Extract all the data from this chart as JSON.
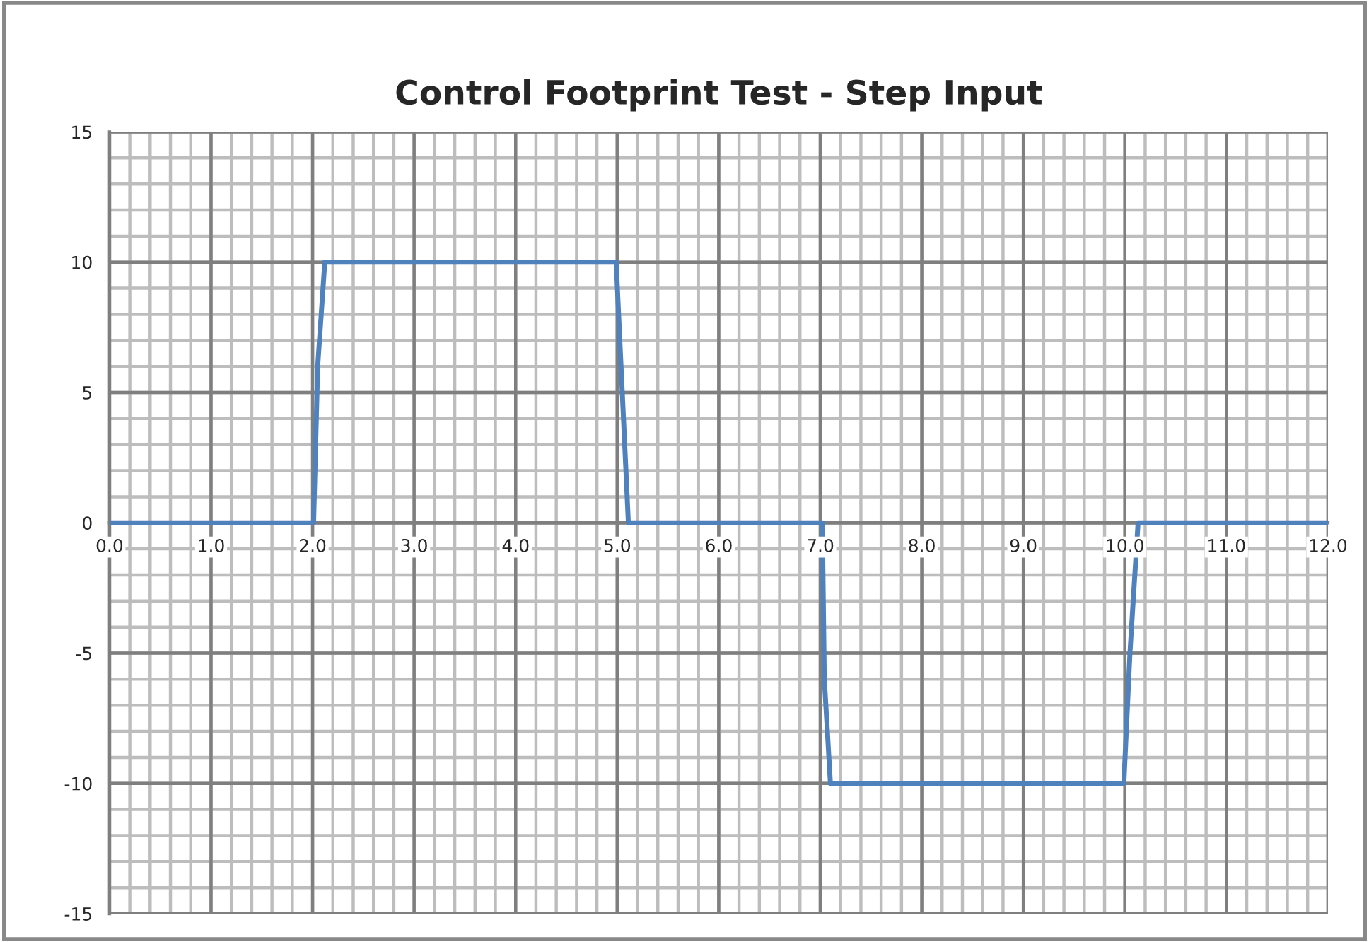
{
  "chart_data": {
    "type": "line",
    "title": "Control Footprint Test - Step Input",
    "x": [
      0,
      2.01,
      2.05,
      2.12,
      4.99,
      5.05,
      5.11,
      7.02,
      7.04,
      7.1,
      9.99,
      10.05,
      10.13,
      12
    ],
    "series": [
      {
        "color": "#4f81bd",
        "values": [
          0,
          0,
          6,
          10,
          10,
          5,
          0,
          0,
          -6,
          -10,
          -10,
          -5,
          0,
          0
        ]
      }
    ],
    "xlim": [
      0,
      12
    ],
    "ylim": [
      -15,
      15
    ],
    "xticks": [
      {
        "value": 0,
        "label": "0.0"
      },
      {
        "value": 1,
        "label": "1.0"
      },
      {
        "value": 2,
        "label": "2.0"
      },
      {
        "value": 3,
        "label": "3.0"
      },
      {
        "value": 4,
        "label": "4.0"
      },
      {
        "value": 5,
        "label": "5.0"
      },
      {
        "value": 6,
        "label": "6.0"
      },
      {
        "value": 7,
        "label": "7.0"
      },
      {
        "value": 8,
        "label": "8.0"
      },
      {
        "value": 9,
        "label": "9.0"
      },
      {
        "value": 10,
        "label": "10.0"
      },
      {
        "value": 11,
        "label": "11.0"
      },
      {
        "value": 12,
        "label": "12.0"
      }
    ],
    "yticks": [
      -15,
      -10,
      -5,
      0,
      5,
      10,
      15
    ],
    "grid": true,
    "marker": "none",
    "line_style": "solid"
  }
}
